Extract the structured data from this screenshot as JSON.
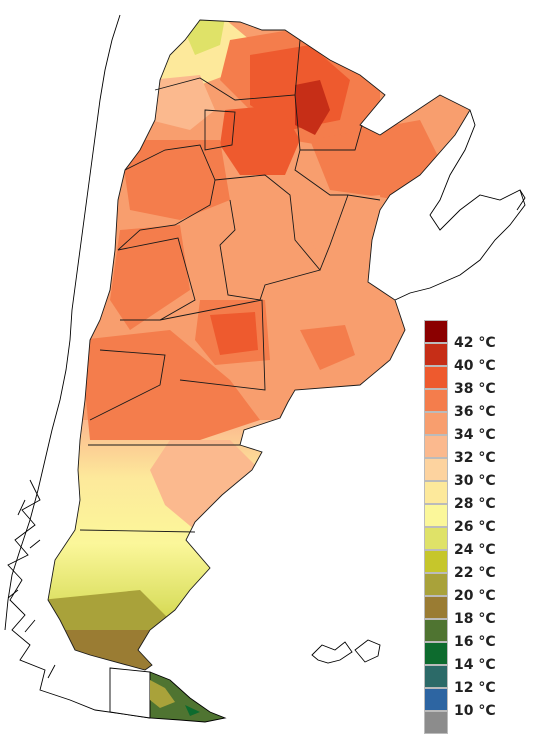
{
  "legend": {
    "unit": "°C",
    "items": [
      {
        "label": "42 °C",
        "color": "#8b0000"
      },
      {
        "label": "40 °C",
        "color": "#c62e17"
      },
      {
        "label": "38 °C",
        "color": "#ee5a2e"
      },
      {
        "label": "36 °C",
        "color": "#f47d4c"
      },
      {
        "label": "34 °C",
        "color": "#f89e6e"
      },
      {
        "label": "32 °C",
        "color": "#fbb98e"
      },
      {
        "label": "30 °C",
        "color": "#fdd39f"
      },
      {
        "label": "28 °C",
        "color": "#fde99b"
      },
      {
        "label": "26 °C",
        "color": "#fbf79a"
      },
      {
        "label": "24 °C",
        "color": "#dfe268"
      },
      {
        "label": "22 °C",
        "color": "#c6c62b"
      },
      {
        "label": "20 °C",
        "color": "#a9a23a"
      },
      {
        "label": "18 °C",
        "color": "#9a7c33"
      },
      {
        "label": "16 °C",
        "color": "#4f7431"
      },
      {
        "label": "14 °C",
        "color": "#0d6b2e"
      },
      {
        "label": "12 °C",
        "color": "#2c6a68"
      },
      {
        "label": "10 °C",
        "color": "#2d65a2"
      },
      {
        "label": "",
        "color": "#8c8c8c"
      }
    ]
  }
}
